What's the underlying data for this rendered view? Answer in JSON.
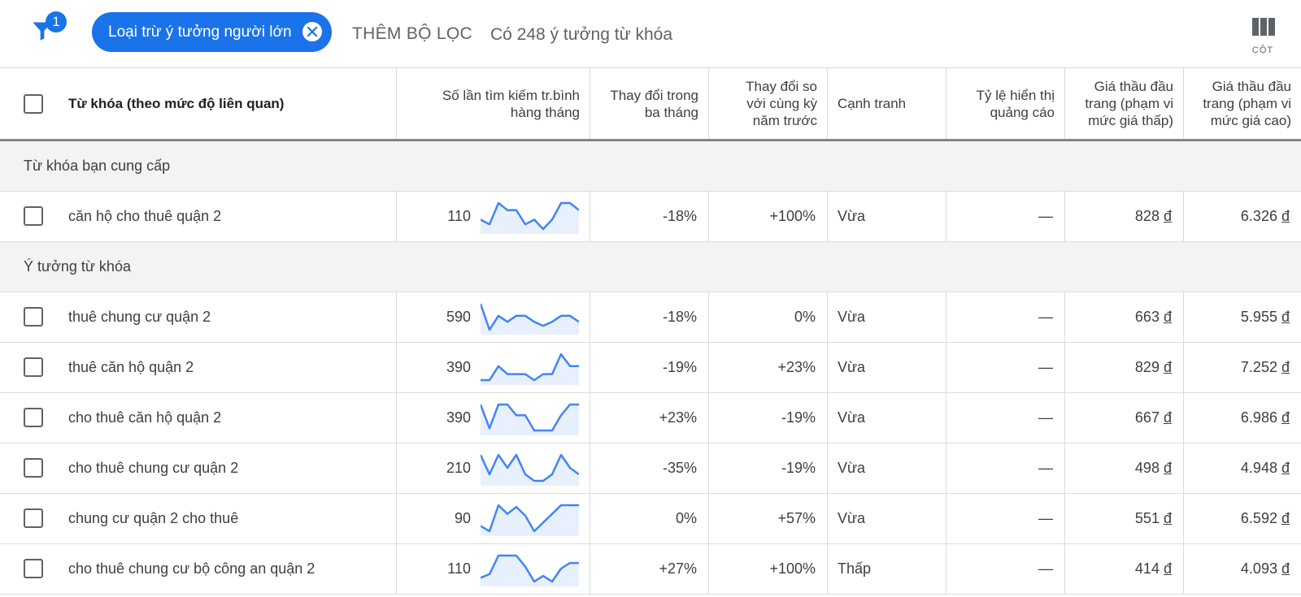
{
  "filter_bar": {
    "badge_count": "1",
    "chip_label": "Loại trừ ý tưởng người lớn",
    "add_filter_label": "THÊM BỘ LỌC",
    "idea_count_text": "Có 248 ý tưởng từ khóa",
    "columns_label": "CỘT"
  },
  "table": {
    "headers": {
      "keyword": "Từ khóa (theo mức độ liên quan)",
      "avg_searches_1": "Số lần tìm kiếm tr.bình",
      "avg_searches_2": "hàng tháng",
      "three_month_1": "Thay đổi trong",
      "three_month_2": "ba tháng",
      "yoy_1": "Thay đổi so",
      "yoy_2": "với cùng kỳ",
      "yoy_3": "năm trước",
      "competition": "Cạnh tranh",
      "impression_share_1": "Tỷ lệ hiển thị",
      "impression_share_2": "quảng cáo",
      "bid_low_1": "Giá thầu đầu",
      "bid_low_2": "trang (phạm vi",
      "bid_low_3": "mức giá thấp)",
      "bid_high_1": "Giá thầu đầu",
      "bid_high_2": "trang (phạm vi",
      "bid_high_3": "mức giá cao)"
    },
    "section_provided": "Từ khóa bạn cung cấp",
    "section_ideas": "Ý tưởng từ khóa",
    "currency": "đ",
    "rows": [
      {
        "keyword": "căn hộ cho thuê quận 2",
        "volume": "110",
        "trend": [
          5,
          3,
          12,
          9,
          9,
          3,
          5,
          1,
          5,
          12,
          12,
          9
        ],
        "three_month": "-18%",
        "yoy": "+100%",
        "competition": "Vừa",
        "impression_share": "—",
        "bid_low": "828",
        "bid_high": "6.326"
      },
      {
        "keyword": "thuê chung cư quận 2",
        "volume": "590",
        "trend": [
          14,
          1,
          8,
          5,
          8,
          8,
          5,
          3,
          5,
          8,
          8,
          5
        ],
        "three_month": "-18%",
        "yoy": "0%",
        "competition": "Vừa",
        "impression_share": "—",
        "bid_low": "663",
        "bid_high": "5.955"
      },
      {
        "keyword": "thuê căn hộ quận 2",
        "volume": "390",
        "trend": [
          0,
          0,
          7,
          3,
          3,
          3,
          0,
          3,
          3,
          13,
          7,
          7
        ],
        "three_month": "-19%",
        "yoy": "+23%",
        "competition": "Vừa",
        "impression_share": "—",
        "bid_low": "829",
        "bid_high": "7.252"
      },
      {
        "keyword": "cho thuê căn hộ quận 2",
        "volume": "390",
        "trend": [
          12,
          1,
          12,
          12,
          7,
          7,
          0,
          0,
          0,
          7,
          12,
          12
        ],
        "three_month": "+23%",
        "yoy": "-19%",
        "competition": "Vừa",
        "impression_share": "—",
        "bid_low": "667",
        "bid_high": "6.986"
      },
      {
        "keyword": "cho thuê chung cư quận 2",
        "volume": "210",
        "trend": [
          6,
          0,
          6,
          2,
          6,
          0,
          -2,
          -2,
          0,
          6,
          2,
          0
        ],
        "three_month": "-35%",
        "yoy": "-19%",
        "competition": "Vừa",
        "impression_share": "—",
        "bid_low": "498",
        "bid_high": "4.948"
      },
      {
        "keyword": "chung cư quận 2 cho thuê",
        "volume": "90",
        "trend": [
          3,
          0,
          15,
          10,
          14,
          9,
          0,
          5,
          10,
          15,
          15,
          15
        ],
        "three_month": "0%",
        "yoy": "+57%",
        "competition": "Vừa",
        "impression_share": "—",
        "bid_low": "551",
        "bid_high": "6.592"
      },
      {
        "keyword": "cho thuê chung cư bộ công an quận 2",
        "volume": "110",
        "trend": [
          3,
          5,
          15,
          15,
          15,
          9,
          1,
          4,
          1,
          8,
          11,
          11
        ],
        "three_month": "+27%",
        "yoy": "+100%",
        "competition": "Thấp",
        "impression_share": "—",
        "bid_low": "414",
        "bid_high": "4.093"
      }
    ]
  },
  "colors": {
    "accent": "#1a73e8",
    "sparkline": "#4285f4",
    "sparkline_fill": "#e8f0fe",
    "section_bg": "#f1f3f4"
  }
}
